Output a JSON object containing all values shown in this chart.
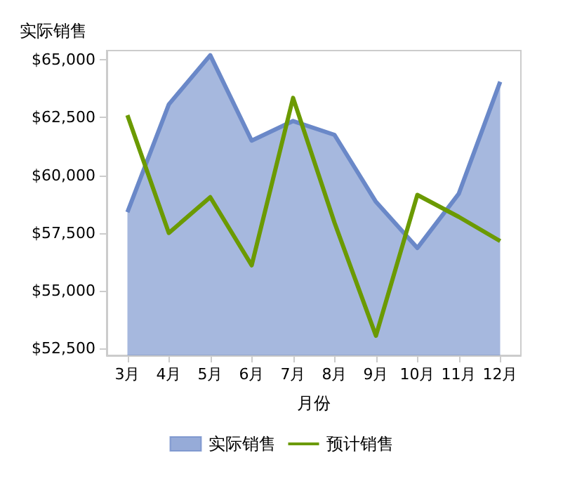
{
  "chart_data": {
    "type": "line",
    "ylabel": "实际销售",
    "xlabel": "月份",
    "categories": [
      "3月",
      "4月",
      "5月",
      "6月",
      "7月",
      "8月",
      "9月",
      "10月",
      "11月",
      "12月"
    ],
    "series": [
      {
        "name": "实际销售",
        "type": "area",
        "color": "#6a88c8",
        "values": [
          58400,
          63070,
          65200,
          61500,
          62350,
          61750,
          58850,
          56850,
          59200,
          64050
        ]
      },
      {
        "name": "预计销售",
        "type": "line",
        "color": "#6b9a00",
        "values": [
          62600,
          57500,
          59050,
          56100,
          63350,
          57950,
          53050,
          59150,
          58200,
          57150
        ]
      }
    ],
    "ylim": [
      52200,
      65400
    ],
    "yticks": [
      {
        "value": 52500,
        "label": "$52,500"
      },
      {
        "value": 55000,
        "label": "$55,000"
      },
      {
        "value": 57500,
        "label": "$57,500"
      },
      {
        "value": 60000,
        "label": "$60,000"
      },
      {
        "value": 62500,
        "label": "$62,500"
      },
      {
        "value": 65000,
        "label": "$65,000"
      }
    ],
    "grid": false,
    "legend": "bottom",
    "marker": "none",
    "line_style": "solid"
  }
}
